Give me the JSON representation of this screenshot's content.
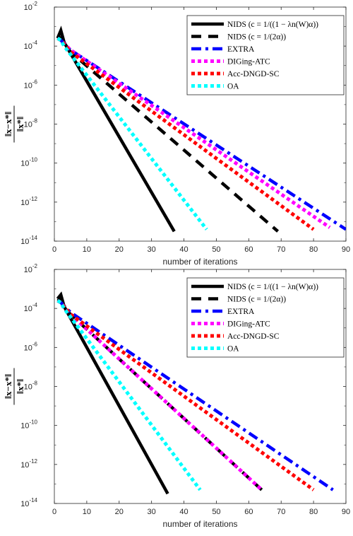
{
  "chart_data": [
    {
      "type": "line",
      "title": "",
      "xlabel": "number of iterations",
      "ylabel_numerator": "x−x*",
      "ylabel_denominator": "x*",
      "xlim": [
        0,
        90
      ],
      "ylim_exponents": [
        -14,
        -2
      ],
      "yscale": "log",
      "x_ticks": [
        "0",
        "10",
        "20",
        "30",
        "40",
        "50",
        "60",
        "70",
        "80",
        "90"
      ],
      "y_ticks": [
        {
          "base": "10",
          "exp": "-14"
        },
        {
          "base": "10",
          "exp": "-12"
        },
        {
          "base": "10",
          "exp": "-10"
        },
        {
          "base": "10",
          "exp": "-8"
        },
        {
          "base": "10",
          "exp": "-6"
        },
        {
          "base": "10",
          "exp": "-4"
        },
        {
          "base": "10",
          "exp": "-2"
        }
      ],
      "legend_position": "top-right",
      "series": [
        {
          "name": "NIDS (c = 1/((1 − λn(W)α))",
          "color": "#000000",
          "style": "solid",
          "points": [
            [
              1,
              -3.6
            ],
            [
              2,
              -3.2
            ],
            [
              3,
              -3.8
            ],
            [
              37,
              -13.5
            ]
          ]
        },
        {
          "name": "NIDS (c = 1/(2α))",
          "color": "#000000",
          "style": "dash",
          "points": [
            [
              1,
              -3.5
            ],
            [
              2,
              -3.6
            ],
            [
              5,
              -4.3
            ],
            [
              69,
              -13.5
            ]
          ]
        },
        {
          "name": "EXTRA",
          "color": "#0000ff",
          "style": "dashdot",
          "points": [
            [
              1,
              -3.6
            ],
            [
              2,
              -3.7
            ],
            [
              5,
              -4.2
            ],
            [
              90,
              -13.4
            ]
          ]
        },
        {
          "name": "DIGing-ATC",
          "color": "#ff00ff",
          "style": "dot",
          "points": [
            [
              1,
              -3.6
            ],
            [
              2,
              -3.7
            ],
            [
              5,
              -4.2
            ],
            [
              85,
              -13.3
            ]
          ]
        },
        {
          "name": "Acc-DNGD-SC",
          "color": "#ff0000",
          "style": "dot",
          "points": [
            [
              1,
              -3.6
            ],
            [
              2,
              -3.7
            ],
            [
              5,
              -4.3
            ],
            [
              80,
              -13.4
            ]
          ]
        },
        {
          "name": "OA",
          "color": "#00ffff",
          "style": "dot",
          "points": [
            [
              1,
              -3.6
            ],
            [
              2,
              -3.7
            ],
            [
              3,
              -4.0
            ],
            [
              47,
              -13.4
            ]
          ]
        }
      ]
    },
    {
      "type": "line",
      "title": "",
      "xlabel": "number of iterations",
      "ylabel_numerator": "x−x*",
      "ylabel_denominator": "x*",
      "xlim": [
        0,
        90
      ],
      "ylim_exponents": [
        -14,
        -2
      ],
      "yscale": "log",
      "x_ticks": [
        "0",
        "10",
        "20",
        "30",
        "40",
        "50",
        "60",
        "70",
        "80",
        "90"
      ],
      "y_ticks": [
        {
          "base": "10",
          "exp": "-14"
        },
        {
          "base": "10",
          "exp": "-12"
        },
        {
          "base": "10",
          "exp": "-10"
        },
        {
          "base": "10",
          "exp": "-8"
        },
        {
          "base": "10",
          "exp": "-6"
        },
        {
          "base": "10",
          "exp": "-4"
        },
        {
          "base": "10",
          "exp": "-2"
        }
      ],
      "legend_position": "top-right",
      "series": [
        {
          "name": "NIDS (c = 1/((1 − λn(W)α))",
          "color": "#000000",
          "style": "solid",
          "points": [
            [
              1,
              -3.5
            ],
            [
              2,
              -3.3
            ],
            [
              3,
              -3.9
            ],
            [
              35,
              -13.5
            ]
          ]
        },
        {
          "name": "NIDS (c = 1/(2α))",
          "color": "#000000",
          "style": "dash",
          "points": [
            [
              1,
              -3.5
            ],
            [
              2,
              -3.6
            ],
            [
              3,
              -4.0
            ],
            [
              64,
              -13.3
            ]
          ]
        },
        {
          "name": "EXTRA",
          "color": "#0000ff",
          "style": "dashdot",
          "points": [
            [
              1,
              -3.6
            ],
            [
              2,
              -3.7
            ],
            [
              5,
              -4.2
            ],
            [
              86,
              -13.3
            ]
          ]
        },
        {
          "name": "DIGing-ATC",
          "color": "#ff00ff",
          "style": "dot",
          "points": [
            [
              1,
              -3.6
            ],
            [
              2,
              -3.7
            ],
            [
              3,
              -4.0
            ],
            [
              64,
              -13.3
            ]
          ]
        },
        {
          "name": "Acc-DNGD-SC",
          "color": "#ff0000",
          "style": "dot",
          "points": [
            [
              1,
              -3.6
            ],
            [
              2,
              -3.7
            ],
            [
              5,
              -4.3
            ],
            [
              80,
              -13.3
            ]
          ]
        },
        {
          "name": "OA",
          "color": "#00ffff",
          "style": "dot",
          "points": [
            [
              1,
              -3.6
            ],
            [
              2,
              -3.7
            ],
            [
              3,
              -4.0
            ],
            [
              45,
              -13.3
            ]
          ]
        }
      ]
    }
  ]
}
